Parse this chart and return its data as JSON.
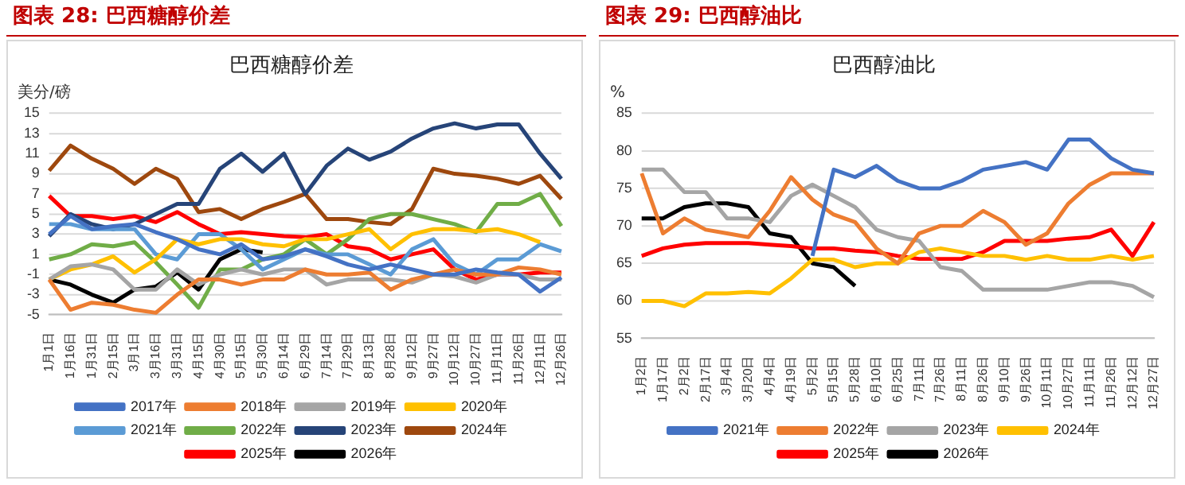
{
  "chart_data": [
    {
      "type": "line",
      "title": "巴西糖醇价差",
      "ylabel": "美分/磅",
      "annotations": [
        "图表 28: 巴西糖醇价差"
      ],
      "categories": [
        "1月1日",
        "1月16日",
        "1月31日",
        "2月15日",
        "3月1日",
        "3月16日",
        "3月31日",
        "4月15日",
        "4月30日",
        "5月15日",
        "5月30日",
        "6月14日",
        "6月29日",
        "7月14日",
        "7月29日",
        "8月13日",
        "8月28日",
        "9月12日",
        "9月27日",
        "10月12日",
        "10月27日",
        "11月11日",
        "11月26日",
        "12月11日",
        "12月26日"
      ],
      "ylim": [
        -5,
        15
      ],
      "yticks": [
        -5,
        -3,
        -1,
        1,
        3,
        5,
        7,
        9,
        11,
        13,
        15
      ],
      "grid": "y",
      "legend": "bottom",
      "marker": "none",
      "line_style": "solid",
      "series": [
        {
          "name": "2017年",
          "color": "#4472c4",
          "values": [
            3,
            4.8,
            3.5,
            3.8,
            4,
            3.2,
            2.5,
            1.5,
            1,
            2,
            0.5,
            0.8,
            1.5,
            0.8,
            0,
            -0.5,
            0,
            -0.5,
            -1,
            -1,
            -0.5,
            -0.8,
            -1,
            -2.7,
            -1.3
          ]
        },
        {
          "name": "2018年",
          "color": "#ed7d31",
          "values": [
            -1.5,
            -4.5,
            -3.8,
            -4,
            -4.5,
            -4.8,
            -3,
            -1.5,
            -1.5,
            -2,
            -1.5,
            -1.5,
            -0.5,
            -1,
            -1,
            -0.8,
            -2.5,
            -1.5,
            -1,
            -0.5,
            -1,
            -1,
            -0.3,
            -0.5,
            -1
          ]
        },
        {
          "name": "2019年",
          "color": "#a5a5a5",
          "values": [
            -1.5,
            -0.2,
            0,
            -0.5,
            -2.5,
            -2.5,
            -0.5,
            -2,
            -1,
            -0.5,
            -1,
            -0.5,
            -0.5,
            -2,
            -1.5,
            -1.5,
            -1.5,
            -1.8,
            -1,
            -1.2,
            -1.8,
            -1,
            -1,
            -1.5,
            -1.5
          ]
        },
        {
          "name": "2020年",
          "color": "#ffc000",
          "values": [
            -1.5,
            -0.5,
            0,
            0.8,
            -0.8,
            0.5,
            2.5,
            2,
            2.5,
            2.5,
            2,
            1.8,
            2.5,
            2.5,
            3,
            3.5,
            1.5,
            3,
            3.5,
            3.5,
            3.3,
            3.5,
            3,
            2.2,
            null
          ]
        },
        {
          "name": "2021年",
          "color": "#5b9bd5",
          "values": [
            4,
            4,
            3.5,
            3.5,
            3.5,
            1,
            0.5,
            3,
            3,
            1.5,
            -0.5,
            0.5,
            1.5,
            1,
            1,
            0,
            -1,
            1.5,
            2.5,
            0,
            -1,
            0.5,
            0.5,
            2,
            1.3
          ]
        },
        {
          "name": "2022年",
          "color": "#70ad47",
          "values": [
            0.5,
            1,
            2,
            1.8,
            2.2,
            0.2,
            -2,
            -4.3,
            -0.5,
            -0.5,
            0.5,
            1,
            2.5,
            1,
            2.5,
            4.5,
            5,
            5,
            4.5,
            4,
            3.2,
            6,
            6,
            7,
            3.8
          ]
        },
        {
          "name": "2023年",
          "color": "#264478",
          "values": [
            2.8,
            5,
            4,
            3.5,
            4,
            5,
            6,
            6,
            9.5,
            11,
            9.2,
            11,
            7,
            9.8,
            11.5,
            10.4,
            11.2,
            12.5,
            13.5,
            14,
            13.5,
            13.9,
            13.9,
            11,
            8.5
          ]
        },
        {
          "name": "2024年",
          "color": "#9e480e",
          "values": [
            9.3,
            11.8,
            10.5,
            9.5,
            8,
            9.5,
            8.5,
            5.2,
            5.5,
            4.5,
            5.5,
            6.2,
            7,
            4.5,
            4.5,
            4.2,
            4,
            5.5,
            9.5,
            9,
            8.8,
            8.5,
            8,
            8.8,
            6.5
          ]
        },
        {
          "name": "2025年",
          "color": "#ff0000",
          "values": [
            6.8,
            4.8,
            4.8,
            4.5,
            4.8,
            4.2,
            5.2,
            4,
            3,
            3.2,
            3,
            2.8,
            2.7,
            3,
            1.8,
            1.5,
            0.5,
            1,
            1.5,
            -0.5,
            -1.5,
            -1,
            -1,
            -0.8,
            -0.8
          ]
        },
        {
          "name": "2026年",
          "color": "#000000",
          "values": [
            -1.5,
            -2,
            -3,
            -3.8,
            -2.5,
            -2.2,
            -0.8,
            -2.5,
            0.5,
            1.5,
            1.2,
            null,
            null,
            null,
            null,
            null,
            null,
            null,
            null,
            null,
            null,
            null,
            null,
            null,
            null
          ]
        }
      ]
    },
    {
      "type": "line",
      "title": "巴西醇油比",
      "ylabel": "%",
      "annotations": [
        "图表 29: 巴西醇油比"
      ],
      "categories": [
        "1月2日",
        "1月17日",
        "2月2日",
        "2月17日",
        "3月4日",
        "3月20日",
        "4月4日",
        "4月19日",
        "5月2日",
        "5月15日",
        "5月28日",
        "6月10日",
        "6月25日",
        "7月11日",
        "7月26日",
        "8月11日",
        "8月26日",
        "9月10日",
        "9月26日",
        "10月11日",
        "10月27日",
        "11月11日",
        "11月26日",
        "12月12日",
        "12月27日"
      ],
      "ylim": [
        55,
        85
      ],
      "yticks": [
        55,
        60,
        65,
        70,
        75,
        80,
        85
      ],
      "grid": "y",
      "legend": "bottom",
      "marker": "none",
      "line_style": "solid",
      "series": [
        {
          "name": "2021年",
          "color": "#4472c4",
          "values": [
            null,
            null,
            null,
            null,
            null,
            null,
            null,
            null,
            66,
            77.5,
            76.5,
            78,
            76,
            75,
            75,
            76,
            77.5,
            78,
            78.5,
            77.5,
            81.5,
            81.5,
            79,
            77.5,
            77
          ]
        },
        {
          "name": "2022年",
          "color": "#ed7d31",
          "values": [
            77,
            69,
            71,
            69.5,
            69,
            68.5,
            72,
            76.5,
            73.5,
            71.5,
            70.5,
            67,
            65,
            69,
            70,
            70,
            72,
            70.5,
            67.5,
            69,
            73,
            75.5,
            77,
            77,
            77
          ]
        },
        {
          "name": "2023年",
          "color": "#a5a5a5",
          "values": [
            77.5,
            77.5,
            74.5,
            74.5,
            71,
            71,
            70.5,
            74,
            75.5,
            74,
            72.5,
            69.5,
            68.5,
            68,
            64.5,
            64,
            61.5,
            61.5,
            61.5,
            61.5,
            62,
            62.5,
            62.5,
            62,
            60.5
          ]
        },
        {
          "name": "2024年",
          "color": "#ffc000",
          "values": [
            60,
            60,
            59.3,
            61,
            61,
            61.2,
            61,
            63,
            65.5,
            65.5,
            64.5,
            65,
            65,
            66.5,
            67,
            66.5,
            66,
            66,
            65.5,
            66,
            65.5,
            65.5,
            66,
            65.5,
            66
          ]
        },
        {
          "name": "2025年",
          "color": "#ff0000",
          "values": [
            66,
            67,
            67.5,
            67.7,
            67.7,
            67.7,
            67.5,
            67.3,
            67,
            67,
            66.7,
            66.5,
            66,
            65.6,
            65.6,
            65.6,
            66.5,
            68,
            68,
            68,
            68.3,
            68.5,
            69.5,
            66,
            70.5
          ]
        },
        {
          "name": "2026年",
          "color": "#000000",
          "values": [
            71,
            71,
            72.5,
            73,
            73,
            72.5,
            69,
            68.5,
            65,
            64.5,
            62,
            null,
            null,
            null,
            null,
            null,
            null,
            null,
            null,
            null,
            null,
            null,
            null,
            null,
            null
          ]
        }
      ]
    }
  ]
}
